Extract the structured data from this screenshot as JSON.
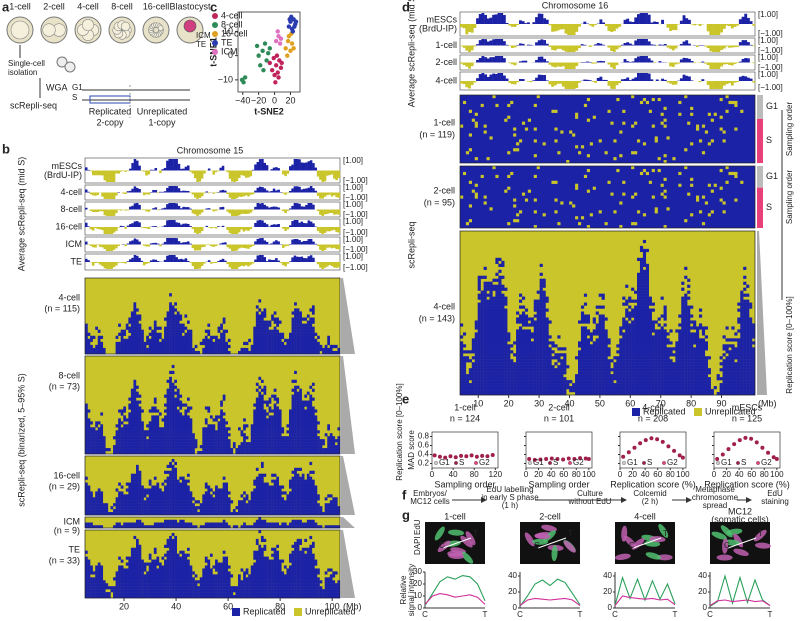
{
  "panel_a": {
    "label": "a",
    "stages": [
      "1-cell",
      "2-cell",
      "4-cell",
      "8-cell",
      "16-cell",
      "Blastocyst"
    ],
    "icm": "ICM",
    "te": "TE",
    "isolation": [
      "Single-cell",
      "isolation"
    ],
    "wga": "WGA",
    "method": "scRepli-seq",
    "g1": "G1",
    "s": "S",
    "replicated": "Replicated",
    "unreplicated": "Unreplicated",
    "two_copy": "2-copy",
    "one_copy": "1-copy"
  },
  "panel_c": {
    "label": "c",
    "xlabel": "t-SNE2",
    "ylabel": "t-SNE1",
    "xlim": [
      -46,
      32
    ],
    "ylim": [
      -15,
      18
    ],
    "xticks": [
      {
        "value": -40,
        "label": "−40"
      },
      {
        "value": -20,
        "label": "−20"
      },
      0,
      20
    ],
    "yticks": [
      10,
      0,
      {
        "value": -10,
        "label": "−10"
      }
    ],
    "series": [
      {
        "name": "4-cell",
        "color": "#c0245c",
        "x": [
          -6,
          -3,
          0,
          2,
          4,
          6,
          8,
          -1,
          3,
          5,
          9,
          1
        ],
        "y": [
          -3,
          -6,
          -8,
          -4,
          -7,
          -2,
          -5,
          -1,
          0,
          -9,
          -3,
          -11
        ]
      },
      {
        "name": "8-cell",
        "color": "#2e8b57",
        "x": [
          -20,
          -15,
          -10,
          -12,
          -8,
          -18,
          -41,
          -39,
          -37,
          -14,
          -6,
          -22
        ],
        "y": [
          0,
          2,
          -2,
          5,
          1,
          -4,
          -10,
          -11,
          -9,
          -6,
          3,
          4
        ]
      },
      {
        "name": "16-cell",
        "color": "#e0a020",
        "x": [
          14,
          17,
          20,
          22,
          18,
          24,
          16,
          21
        ],
        "y": [
          3,
          6,
          2,
          5,
          8,
          3,
          0,
          9
        ]
      },
      {
        "name": "TE",
        "color": "#2b3bb0",
        "x": [
          18,
          20,
          22,
          24,
          26,
          21,
          23,
          25,
          19,
          27
        ],
        "y": [
          12,
          14,
          11,
          15,
          13,
          16,
          10,
          12,
          15,
          14
        ]
      },
      {
        "name": "ICM",
        "color": "#e070c0",
        "x": [
          2,
          5,
          8,
          4,
          7
        ],
        "y": [
          6,
          8,
          7,
          10,
          5
        ]
      }
    ]
  },
  "panel_b": {
    "label": "b",
    "title": "Chromosome 15",
    "tracks": [
      [
        "mESCs",
        "(BrdU-IP)"
      ],
      [
        "4-cell"
      ],
      [
        "8-cell"
      ],
      [
        "16-cell"
      ],
      [
        "ICM"
      ],
      [
        "TE"
      ]
    ],
    "scale_top": "[1.00]",
    "scale_bottom": "[−1.00]",
    "side_average": "Average scRepli-seq (mid S)",
    "side_single": "scRepli-seq (binarized, 5–95% S)",
    "groups": [
      {
        "name": "4-cell",
        "n": "(n = 115)"
      },
      {
        "name": "8-cell",
        "n": "(n = 73)"
      },
      {
        "name": "16-cell",
        "n": "(n = 29)"
      },
      {
        "name": "ICM",
        "n": "(n = 9)"
      },
      {
        "name": "TE",
        "n": "(n = 33)"
      }
    ],
    "xlim": [
      5,
      103
    ],
    "xticks": [
      20,
      40,
      60,
      80,
      100
    ],
    "xunit": "(Mb)",
    "legend": [
      "Replicated",
      "Unreplicated"
    ]
  },
  "panel_d": {
    "label": "d",
    "title": "Chromosome 16",
    "tracks": [
      [
        "mESCs",
        "(BrdU-IP)"
      ],
      [
        "1-cell"
      ],
      [
        "2-cell"
      ],
      [
        "4-cell"
      ]
    ],
    "scale_top": "[1.00]",
    "scale_bottom": "[−1.00]",
    "side_average": "Average scRepli-seq (mid S)",
    "side_single": "scRepli-seq",
    "groups": [
      {
        "name": "1-cell",
        "n": "(n = 119)"
      },
      {
        "name": "2-cell",
        "n": "(n = 95)"
      },
      {
        "name": "4-cell",
        "n": "(n = 143)"
      }
    ],
    "g1": "G1",
    "s": "S",
    "sampling": "Sampling order",
    "score": "Replication score [0–100%]",
    "xlim": [
      4,
      101
    ],
    "xticks": [
      10,
      20,
      30,
      40,
      50,
      60,
      70,
      80,
      90
    ],
    "xunit": "(Mb)",
    "legend": [
      "Replicated",
      "Unreplicated"
    ]
  },
  "panel_e": {
    "label": "e",
    "side": "Replication score [0–100%]",
    "ylabel": "MAD score",
    "ylim": [
      0.1,
      0.9
    ],
    "yticks": [
      0.2,
      0.4,
      0.6,
      0.8
    ],
    "legend": [
      "G1",
      "S",
      "G2"
    ],
    "plots": [
      {
        "title": "1-cell",
        "n": "n = 124",
        "xlabel": "Sampling order",
        "xlim": [
          0,
          125
        ],
        "xticks": [
          0,
          40,
          80,
          120
        ],
        "color": "#a0204a",
        "x": [
          5,
          15,
          25,
          35,
          45,
          55,
          65,
          75,
          85,
          95,
          105,
          115
        ],
        "y": [
          0.38,
          0.35,
          0.33,
          0.36,
          0.34,
          0.37,
          0.36,
          0.38,
          0.35,
          0.37,
          0.36,
          0.39
        ]
      },
      {
        "title": "2-cell",
        "n": "n = 101",
        "xlabel": "Sampling order",
        "xlim": [
          0,
          105
        ],
        "xticks": [
          0,
          20,
          40,
          60,
          80,
          100
        ],
        "color": "#a0204a",
        "x": [
          5,
          14,
          23,
          32,
          41,
          50,
          59,
          68,
          77,
          86,
          95,
          100
        ],
        "y": [
          0.3,
          0.28,
          0.29,
          0.3,
          0.31,
          0.3,
          0.29,
          0.31,
          0.3,
          0.32,
          0.31,
          0.3
        ]
      },
      {
        "title": "4-cell",
        "n": "n = 208",
        "xlabel": "Replication score (%)",
        "xlim": [
          0,
          105
        ],
        "xticks": [
          0,
          20,
          40,
          60,
          80,
          100
        ],
        "color": "#a0204a",
        "x": [
          5,
          14,
          23,
          32,
          41,
          50,
          59,
          68,
          77,
          86,
          95,
          100
        ],
        "y": [
          0.35,
          0.45,
          0.55,
          0.65,
          0.72,
          0.76,
          0.74,
          0.68,
          0.58,
          0.48,
          0.38,
          0.33
        ]
      },
      {
        "title": "mESCs",
        "n": "n = 125",
        "xlabel": "Replication score (%)",
        "xlim": [
          0,
          105
        ],
        "xticks": [
          0,
          20,
          40,
          60,
          80,
          100
        ],
        "color": "#a0204a",
        "x": [
          5,
          14,
          23,
          32,
          41,
          50,
          59,
          68,
          77,
          86,
          95,
          100
        ],
        "y": [
          0.3,
          0.4,
          0.52,
          0.63,
          0.72,
          0.77,
          0.75,
          0.67,
          0.55,
          0.44,
          0.34,
          0.3
        ]
      }
    ]
  },
  "panel_f": {
    "label": "f",
    "steps": [
      [
        "Embryos/",
        "MC12 cells"
      ],
      [
        "EdU labelling",
        "in early S phase",
        "(1 h)"
      ],
      [
        "Culture",
        "without EdU"
      ],
      [
        "Colcemid",
        "(2 h)"
      ],
      [
        "Metaphase",
        "chromosome",
        "spread"
      ],
      [
        "EdU",
        "staining"
      ]
    ]
  },
  "panel_g": {
    "label": "g",
    "dapi": "DAPI",
    "edu": "EdU",
    "c": "C",
    "t": "T",
    "ylabel": [
      "Relative",
      "signal intensity"
    ],
    "plots": [
      {
        "title": [
          "1-cell"
        ],
        "ylim": [
          0,
          30
        ],
        "yticks": [
          0,
          10,
          20,
          30
        ],
        "green": [
          2,
          12,
          22,
          26,
          24,
          27,
          26,
          20,
          6
        ],
        "magenta": [
          3,
          10,
          12,
          11,
          9,
          10,
          11,
          9,
          3
        ]
      },
      {
        "title": [
          "2-cell"
        ],
        "ylim": [
          0,
          45
        ],
        "yticks": [
          0,
          20,
          40
        ],
        "green": [
          2,
          15,
          30,
          35,
          28,
          36,
          32,
          18,
          4
        ],
        "magenta": [
          3,
          10,
          12,
          11,
          10,
          11,
          12,
          10,
          3
        ]
      },
      {
        "title": [
          "4-cell"
        ],
        "ylim": [
          0,
          45
        ],
        "yticks": [
          0,
          20,
          40
        ],
        "green": [
          3,
          38,
          12,
          36,
          10,
          34,
          11,
          30,
          5
        ],
        "magenta": [
          3,
          15,
          13,
          12,
          11,
          12,
          10,
          11,
          4
        ]
      },
      {
        "title": [
          "MC12",
          "(somatic cells)"
        ],
        "ylim": [
          0,
          45
        ],
        "yticks": [
          0,
          20,
          40
        ],
        "green": [
          2,
          8,
          40,
          6,
          38,
          7,
          35,
          10,
          3
        ],
        "magenta": [
          3,
          9,
          10,
          8,
          9,
          10,
          8,
          9,
          3
        ]
      }
    ]
  }
}
